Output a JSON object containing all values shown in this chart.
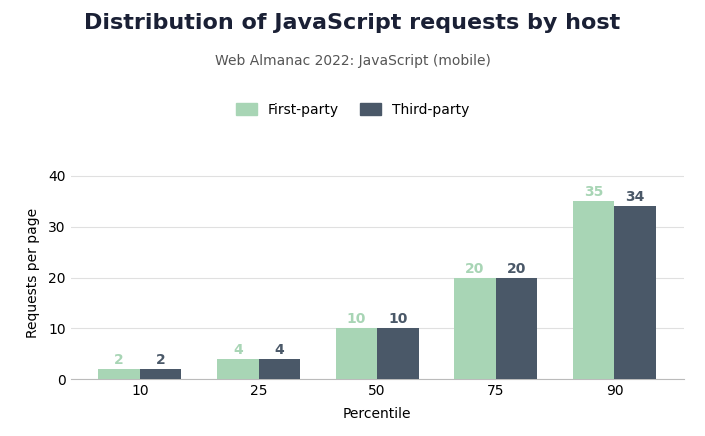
{
  "title": "Distribution of JavaScript requests by host",
  "subtitle": "Web Almanac 2022: JavaScript (mobile)",
  "xlabel": "Percentile",
  "ylabel": "Requests per page",
  "categories": [
    10,
    25,
    50,
    75,
    90
  ],
  "first_party": [
    2,
    4,
    10,
    20,
    35
  ],
  "third_party": [
    2,
    4,
    10,
    20,
    34
  ],
  "first_party_color": "#a8d5b5",
  "third_party_color": "#4a5868",
  "background_color": "#ffffff",
  "ylim": [
    0,
    42
  ],
  "yticks": [
    0,
    10,
    20,
    30,
    40
  ],
  "bar_width": 0.35,
  "legend_labels": [
    "First-party",
    "Third-party"
  ],
  "title_fontsize": 16,
  "subtitle_fontsize": 10,
  "label_fontsize": 10,
  "tick_fontsize": 10,
  "value_label_fontsize": 10,
  "title_color": "#1a2035",
  "subtitle_color": "#555555",
  "first_party_label_color": "#a8d5b5",
  "third_party_label_color": "#4a5868"
}
